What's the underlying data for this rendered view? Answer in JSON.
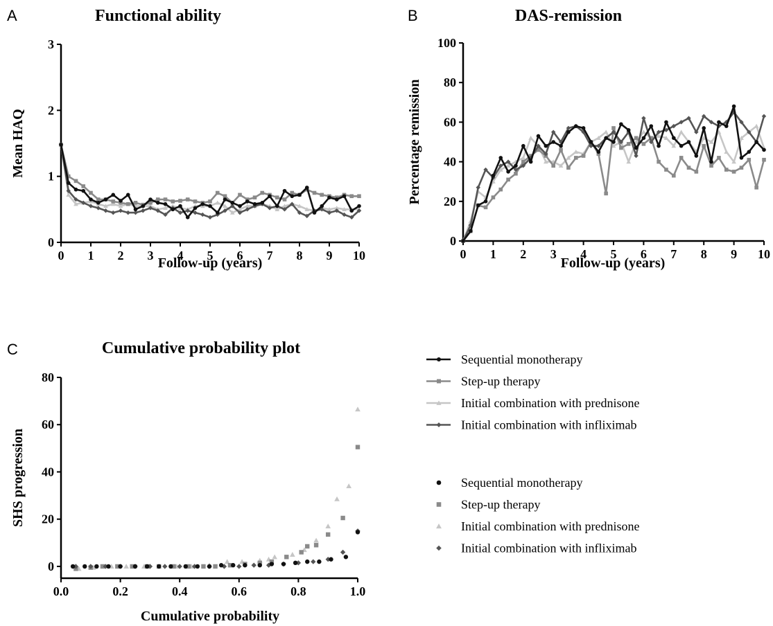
{
  "panels": [
    {
      "letter": "A",
      "title": "Functional ability",
      "xlabel": "Follow-up (years)",
      "ylabel": "Mean HAQ",
      "xticks": [
        "0",
        "1",
        "2",
        "3",
        "4",
        "5",
        "6",
        "7",
        "8",
        "9",
        "10"
      ],
      "yticks": [
        "0",
        "1",
        "2",
        "3"
      ]
    },
    {
      "letter": "B",
      "title": "DAS-remission",
      "xlabel": "Follow-up (years)",
      "ylabel": "Percentage remission",
      "xticks": [
        "0",
        "1",
        "2",
        "3",
        "4",
        "5",
        "6",
        "7",
        "8",
        "9",
        "10"
      ],
      "yticks": [
        "0",
        "20",
        "40",
        "60",
        "80",
        "100"
      ]
    },
    {
      "letter": "C",
      "title": "Cumulative probability plot",
      "xlabel": "Cumulative probability",
      "ylabel": "SHS progression",
      "xticks": [
        "0.0",
        "0.2",
        "0.4",
        "0.6",
        "0.8",
        "1.0"
      ],
      "yticks": [
        "0",
        "20",
        "40",
        "60",
        "80"
      ]
    }
  ],
  "legends": {
    "lines": [
      {
        "label": "Sequential monotherapy",
        "color": "#111111",
        "marker": "circle"
      },
      {
        "label": "Step-up therapy",
        "color": "#8a8a8a",
        "marker": "square"
      },
      {
        "label": "Initial combination with prednisone",
        "color": "#c6c6c6",
        "marker": "triangle"
      },
      {
        "label": "Initial combination with infliximab",
        "color": "#555555",
        "marker": "diamond"
      }
    ],
    "points": [
      {
        "label": "Sequential monotherapy",
        "color": "#111111",
        "marker": "circle"
      },
      {
        "label": "Step-up therapy",
        "color": "#8a8a8a",
        "marker": "square"
      },
      {
        "label": "Initial combination with prednisone",
        "color": "#c6c6c6",
        "marker": "triangle"
      },
      {
        "label": "Initial combination with infliximab",
        "color": "#555555",
        "marker": "diamond"
      }
    ]
  },
  "chart_data": [
    {
      "type": "line",
      "title": "Functional ability",
      "xlabel": "Follow-up (years)",
      "ylabel": "Mean HAQ",
      "xlim": [
        0,
        10
      ],
      "ylim": [
        0,
        3
      ],
      "x": [
        0,
        0.25,
        0.5,
        0.75,
        1,
        1.25,
        1.5,
        1.75,
        2,
        2.25,
        2.5,
        2.75,
        3,
        3.25,
        3.5,
        3.75,
        4,
        4.25,
        4.5,
        4.75,
        5,
        5.25,
        5.5,
        5.75,
        6,
        6.25,
        6.5,
        6.75,
        7,
        7.25,
        7.5,
        7.75,
        8,
        8.25,
        8.5,
        8.75,
        9,
        9.25,
        9.5,
        9.75,
        10
      ],
      "series": [
        {
          "name": "Sequential monotherapy",
          "color": "#111111",
          "marker": "circle",
          "values": [
            1.48,
            0.9,
            0.8,
            0.78,
            0.65,
            0.6,
            0.65,
            0.72,
            0.63,
            0.72,
            0.5,
            0.55,
            0.65,
            0.6,
            0.58,
            0.5,
            0.55,
            0.38,
            0.52,
            0.58,
            0.55,
            0.45,
            0.65,
            0.6,
            0.55,
            0.62,
            0.58,
            0.6,
            0.7,
            0.55,
            0.78,
            0.7,
            0.72,
            0.83,
            0.45,
            0.55,
            0.68,
            0.65,
            0.7,
            0.48,
            0.55
          ]
        },
        {
          "name": "Step-up therapy",
          "color": "#8a8a8a",
          "marker": "square",
          "values": [
            1.48,
            1.0,
            0.93,
            0.85,
            0.75,
            0.65,
            0.65,
            0.62,
            0.6,
            0.58,
            0.6,
            0.57,
            0.6,
            0.65,
            0.65,
            0.62,
            0.63,
            0.65,
            0.62,
            0.6,
            0.62,
            0.75,
            0.7,
            0.6,
            0.72,
            0.65,
            0.68,
            0.75,
            0.72,
            0.68,
            0.65,
            0.75,
            0.72,
            0.8,
            0.75,
            0.72,
            0.7,
            0.68,
            0.72,
            0.7,
            0.7
          ]
        },
        {
          "name": "Initial combination with prednisone",
          "color": "#c6c6c6",
          "marker": "triangle",
          "values": [
            1.48,
            0.72,
            0.58,
            0.6,
            0.62,
            0.58,
            0.55,
            0.58,
            0.55,
            0.58,
            0.55,
            0.55,
            0.55,
            0.5,
            0.52,
            0.55,
            0.52,
            0.5,
            0.55,
            0.55,
            0.55,
            0.6,
            0.55,
            0.45,
            0.5,
            0.55,
            0.55,
            0.58,
            0.55,
            0.5,
            0.55,
            0.58,
            0.55,
            0.5,
            0.48,
            0.52,
            0.5,
            0.52,
            0.5,
            0.5,
            0.5
          ]
        },
        {
          "name": "Initial combination with infliximab",
          "color": "#555555",
          "marker": "diamond",
          "values": [
            1.48,
            0.78,
            0.65,
            0.6,
            0.55,
            0.52,
            0.48,
            0.45,
            0.48,
            0.45,
            0.45,
            0.48,
            0.52,
            0.48,
            0.42,
            0.52,
            0.45,
            0.48,
            0.45,
            0.42,
            0.38,
            0.42,
            0.48,
            0.55,
            0.45,
            0.5,
            0.55,
            0.58,
            0.52,
            0.55,
            0.5,
            0.58,
            0.45,
            0.4,
            0.48,
            0.5,
            0.45,
            0.48,
            0.42,
            0.38,
            0.48
          ]
        }
      ]
    },
    {
      "type": "line",
      "title": "DAS-remission",
      "xlabel": "Follow-up (years)",
      "ylabel": "Percentage remission",
      "xlim": [
        0,
        10
      ],
      "ylim": [
        0,
        100
      ],
      "x": [
        0,
        0.25,
        0.5,
        0.75,
        1,
        1.25,
        1.5,
        1.75,
        2,
        2.25,
        2.5,
        2.75,
        3,
        3.25,
        3.5,
        3.75,
        4,
        4.25,
        4.5,
        4.75,
        5,
        5.25,
        5.5,
        5.75,
        6,
        6.25,
        6.5,
        6.75,
        7,
        7.25,
        7.5,
        7.75,
        8,
        8.25,
        8.5,
        8.75,
        9,
        9.25,
        9.5,
        9.75,
        10
      ],
      "series": [
        {
          "name": "Sequential monotherapy",
          "color": "#111111",
          "marker": "circle",
          "values": [
            0,
            5,
            18,
            20,
            33,
            42,
            35,
            38,
            48,
            40,
            53,
            48,
            50,
            48,
            55,
            58,
            57,
            50,
            45,
            52,
            50,
            59,
            56,
            47,
            52,
            58,
            48,
            60,
            52,
            48,
            50,
            43,
            57,
            40,
            60,
            58,
            68,
            42,
            45,
            50,
            46
          ]
        },
        {
          "name": "Step-up therapy",
          "color": "#8a8a8a",
          "marker": "square",
          "values": [
            0,
            5,
            18,
            17,
            22,
            26,
            31,
            34,
            40,
            43,
            46,
            43,
            38,
            46,
            37,
            42,
            43,
            50,
            44,
            24,
            57,
            47,
            49,
            52,
            49,
            52,
            40,
            36,
            33,
            42,
            37,
            35,
            48,
            38,
            42,
            36,
            35,
            37,
            41,
            27,
            41
          ]
        },
        {
          "name": "Initial combination with prednisone",
          "color": "#c6c6c6",
          "marker": "triangle",
          "values": [
            0,
            10,
            25,
            22,
            30,
            36,
            38,
            40,
            42,
            52,
            48,
            40,
            40,
            38,
            42,
            45,
            44,
            50,
            52,
            55,
            48,
            50,
            40,
            50,
            55,
            52,
            53,
            52,
            48,
            55,
            50,
            45,
            52,
            50,
            55,
            45,
            40,
            52,
            55,
            58,
            47
          ]
        },
        {
          "name": "Initial combination with infliximab",
          "color": "#555555",
          "marker": "diamond",
          "values": [
            0,
            8,
            27,
            36,
            32,
            38,
            40,
            36,
            38,
            42,
            48,
            44,
            55,
            50,
            57,
            58,
            55,
            48,
            48,
            52,
            55,
            50,
            55,
            43,
            62,
            50,
            55,
            56,
            58,
            60,
            62,
            55,
            63,
            60,
            58,
            60,
            65,
            60,
            55,
            50,
            63
          ]
        }
      ]
    },
    {
      "type": "scatter",
      "title": "Cumulative probability plot",
      "xlabel": "Cumulative probability",
      "ylabel": "SHS progression",
      "xlim": [
        0.0,
        1.0
      ],
      "ylim": [
        -5,
        80
      ],
      "series": [
        {
          "name": "Sequential monotherapy",
          "color": "#111111",
          "marker": "circle",
          "x": [
            0.04,
            0.08,
            0.12,
            0.16,
            0.2,
            0.25,
            0.29,
            0.33,
            0.37,
            0.42,
            0.46,
            0.5,
            0.54,
            0.58,
            0.62,
            0.67,
            0.71,
            0.75,
            0.79,
            0.83,
            0.87,
            0.91,
            0.96,
            1.0
          ],
          "y": [
            0,
            0,
            0,
            0,
            0,
            0,
            0,
            0,
            0,
            0,
            0,
            0,
            0.5,
            0.5,
            0.5,
            0.5,
            1,
            1,
            1.5,
            2,
            2,
            3,
            4,
            14.5
          ]
        },
        {
          "name": "Step-up therapy",
          "color": "#8a8a8a",
          "marker": "square",
          "x": [
            0.05,
            0.1,
            0.14,
            0.19,
            0.24,
            0.29,
            0.33,
            0.38,
            0.43,
            0.48,
            0.52,
            0.57,
            0.62,
            0.67,
            0.71,
            0.76,
            0.81,
            0.83,
            0.86,
            0.9,
            0.95,
            1.0
          ],
          "y": [
            -1,
            -0.5,
            0,
            0,
            0,
            0,
            0,
            0,
            0,
            0,
            0,
            0.5,
            1,
            1.5,
            2,
            4,
            6,
            8.5,
            9,
            13.5,
            20.5,
            50.5
          ]
        },
        {
          "name": "Initial combination with prednisone",
          "color": "#c6c6c6",
          "marker": "triangle",
          "x": [
            0.06,
            0.11,
            0.17,
            0.22,
            0.28,
            0.33,
            0.39,
            0.44,
            0.5,
            0.56,
            0.61,
            0.67,
            0.7,
            0.72,
            0.78,
            0.82,
            0.86,
            0.9,
            0.93,
            0.97,
            1.0
          ],
          "y": [
            -1,
            -0.5,
            0,
            0,
            0,
            0,
            0,
            0,
            0.5,
            2,
            2,
            2.5,
            3,
            4,
            5,
            7,
            11,
            17,
            28.5,
            34,
            66.5
          ]
        },
        {
          "name": "Initial combination with infliximab",
          "color": "#555555",
          "marker": "diamond",
          "x": [
            0.05,
            0.1,
            0.15,
            0.2,
            0.25,
            0.3,
            0.35,
            0.4,
            0.45,
            0.5,
            0.55,
            0.6,
            0.65,
            0.7,
            0.75,
            0.8,
            0.85,
            0.9,
            0.95,
            1.0
          ],
          "y": [
            0,
            0,
            0,
            0,
            0,
            0,
            0,
            0,
            0,
            0,
            0,
            0,
            0.5,
            0.5,
            1,
            1.5,
            2,
            3,
            6,
            15
          ]
        }
      ]
    }
  ]
}
